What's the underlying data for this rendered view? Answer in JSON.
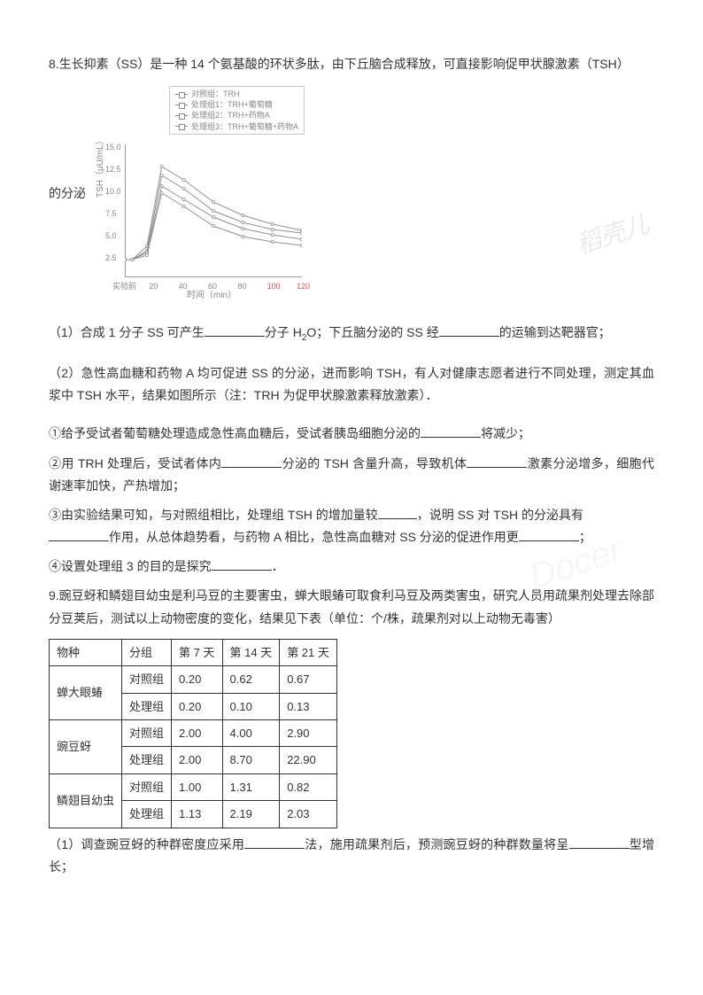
{
  "q8": {
    "intro": "8.生长抑素（SS）是一种 14 个氨基酸的环状多肽，由下丘脑合成释放，可直接影响促甲状腺激素（TSH）",
    "prefix": "的分泌",
    "part1_a": "（1）合成 1 分子 SS 可产生",
    "part1_b": "分子 H",
    "part1_b2": "O；下丘脑分泌的 SS 经",
    "part1_c": "的运输到达靶器官；",
    "part2": "（2）急性高血糖和药物 A 均可促进 SS 的分泌，进而影响 TSH，有人对健康志愿者进行不同处理，测定其血浆中 TSH 水平，结果如图所示（注：TRH 为促甲状腺激素释放激素）．",
    "s1a": "①给予受试者葡萄糖处理造成急性高血糖后，受试者胰岛细胞分泌的",
    "s1b": "将减少；",
    "s2a": "②用 TRH 处理后，受试者体内",
    "s2b": "分泌的 TSH 含量升高，导致机体",
    "s2c": "激素分泌增多，细胞代谢速率加快，产热增加；",
    "s3a": "③由实验结果可知，与对照组相比，处理组 TSH 的增加量较",
    "s3b": "，说明 SS 对 TSH 的分泌具有",
    "s3c": "作用，从总体趋势看，与药物 A 相比，急性高血糖对 SS 分泌的促进作用更",
    "s3d": "；",
    "s4a": "④设置处理组 3 的目的是探究",
    "s4b": "．"
  },
  "q9": {
    "intro": "9.豌豆蚜和鳞翅目幼虫是利马豆的主要害虫，蝉大眼蝽可取食利马豆及两类害虫，研究人员用疏果剂处理去除部分豆荚后，测试以上动物密度的变化，结果见下表（单位：个/株，疏果剂对以上动物无毒害）",
    "q1a": "（1）调查豌豆蚜的种群密度应采用",
    "q1b": "法，施用疏果剂后，预测豌豆蚜的种群数量将呈",
    "q1c": "型增长；"
  },
  "chart": {
    "legend": [
      "对照组：TRH",
      "处理组1：TRH+葡萄糖",
      "处理组2：TRH+药物A",
      "处理组3：TRH+葡萄糖+药物A"
    ],
    "ylabel": "TSH（μU/mL）",
    "xlabel": "时间（min）",
    "yticks": [
      "2.5",
      "5.0",
      "7.5",
      "10.0",
      "12.5",
      "15.0"
    ],
    "xticks": [
      "实验前",
      "20",
      "40",
      "60",
      "80",
      "100",
      "120"
    ],
    "ylim": [
      0,
      15
    ],
    "xlim": [
      0,
      120
    ],
    "background_color": "#ffffff",
    "axis_color": "#999999",
    "series": [
      {
        "name": "对照组",
        "color": "#909090",
        "points": [
          [
            0,
            2.0
          ],
          [
            5,
            2.0
          ],
          [
            15,
            3.5
          ],
          [
            25,
            12.5
          ],
          [
            40,
            11.0
          ],
          [
            60,
            8.5
          ],
          [
            80,
            7.0
          ],
          [
            100,
            6.0
          ],
          [
            120,
            5.3
          ]
        ]
      },
      {
        "name": "处理组1",
        "color": "#909090",
        "points": [
          [
            0,
            2.0
          ],
          [
            5,
            2.0
          ],
          [
            15,
            3.0
          ],
          [
            25,
            11.5
          ],
          [
            40,
            10.0
          ],
          [
            60,
            7.5
          ],
          [
            80,
            6.2
          ],
          [
            100,
            5.4
          ],
          [
            120,
            5.0
          ]
        ]
      },
      {
        "name": "处理组2",
        "color": "#909090",
        "points": [
          [
            0,
            2.0
          ],
          [
            5,
            2.0
          ],
          [
            15,
            2.8
          ],
          [
            25,
            10.3
          ],
          [
            40,
            8.8
          ],
          [
            60,
            6.8
          ],
          [
            80,
            5.5
          ],
          [
            100,
            4.8
          ],
          [
            120,
            4.3
          ]
        ]
      },
      {
        "name": "处理组3",
        "color": "#909090",
        "points": [
          [
            0,
            2.0
          ],
          [
            5,
            2.0
          ],
          [
            15,
            2.5
          ],
          [
            25,
            9.5
          ],
          [
            40,
            8.0
          ],
          [
            60,
            5.8
          ],
          [
            80,
            4.6
          ],
          [
            100,
            4.0
          ],
          [
            120,
            3.6
          ]
        ]
      }
    ]
  },
  "table": {
    "headers": [
      "物种",
      "分组",
      "第 7 天",
      "第 14 天",
      "第 21 天"
    ],
    "species": [
      {
        "name": "蝉大眼蝽",
        "rows": [
          [
            "对照组",
            "0.20",
            "0.62",
            "0.67"
          ],
          [
            "处理组",
            "0.20",
            "0.10",
            "0.13"
          ]
        ]
      },
      {
        "name": "豌豆蚜",
        "rows": [
          [
            "对照组",
            "2.00",
            "4.00",
            "2.90"
          ],
          [
            "处理组",
            "2.00",
            "8.70",
            "22.90"
          ]
        ]
      },
      {
        "name": "鳞翅目幼虫",
        "rows": [
          [
            "对照组",
            "1.00",
            "1.31",
            "0.82"
          ],
          [
            "处理组",
            "1.13",
            "2.19",
            "2.03"
          ]
        ]
      }
    ]
  },
  "watermark": "稻壳儿",
  "watermark2": "Docer"
}
